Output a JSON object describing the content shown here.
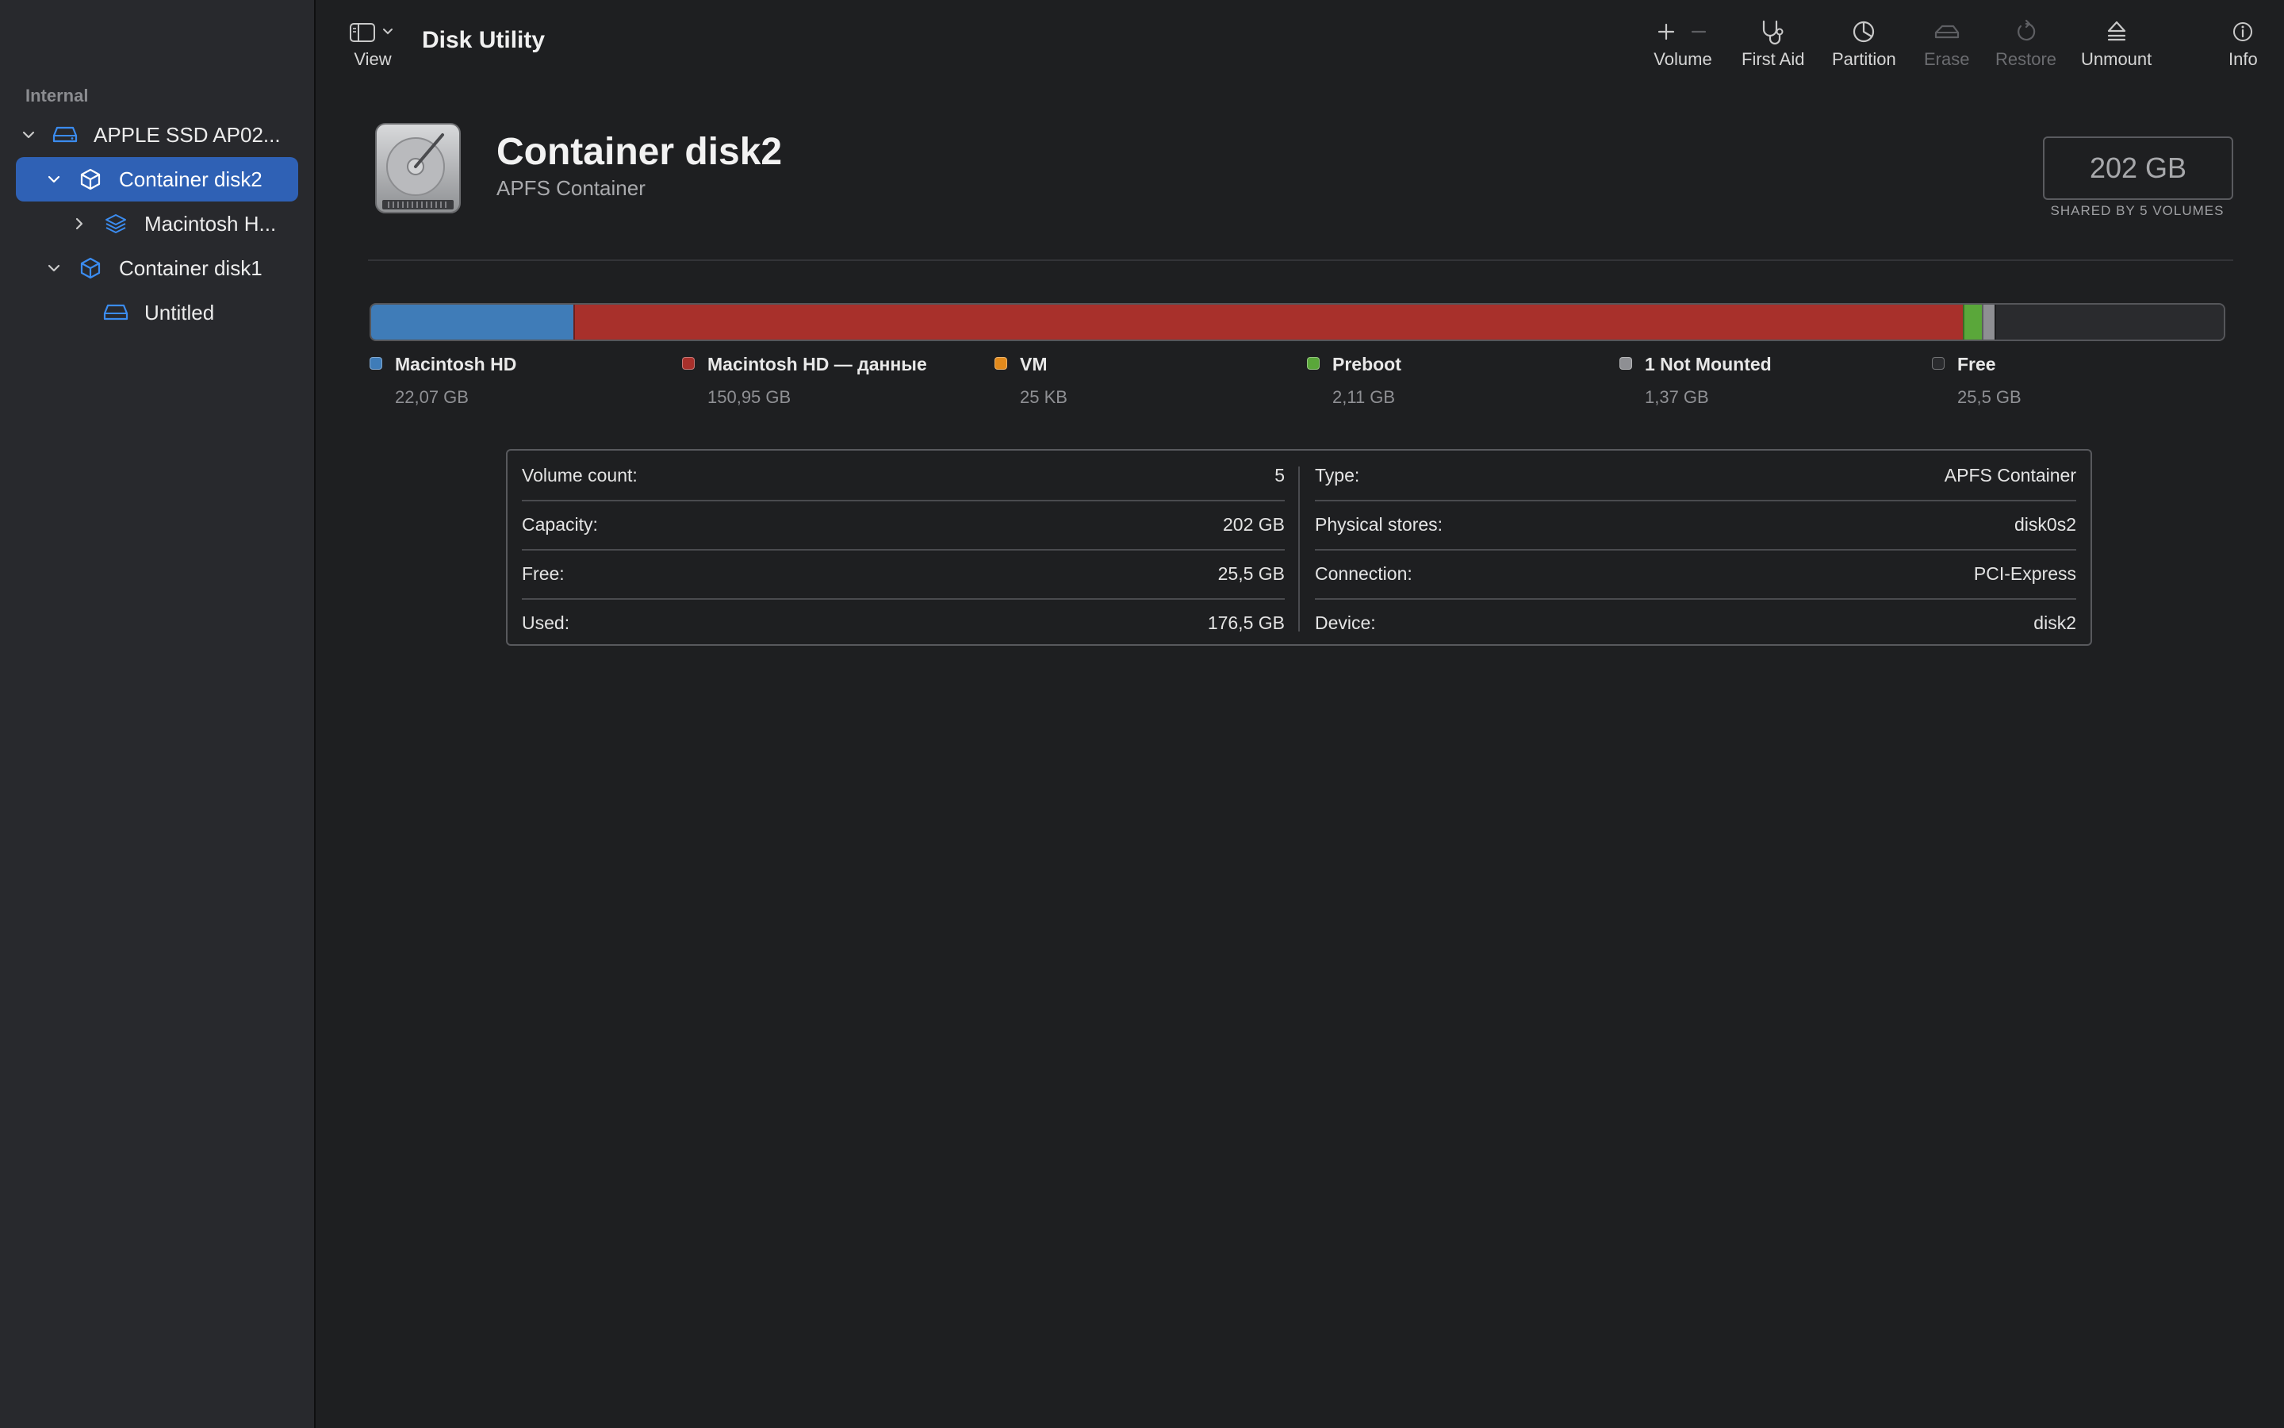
{
  "app": {
    "title": "Disk Utility"
  },
  "sidebar": {
    "section": "Internal",
    "items": [
      {
        "label": "APPLE SSD AP02...",
        "icon": "internal-drive-icon",
        "expanded": true,
        "selected": false
      },
      {
        "label": "Container disk2",
        "icon": "container-cube-icon",
        "expanded": true,
        "selected": true
      },
      {
        "label": "Macintosh H...",
        "icon": "volume-stack-icon",
        "expanded": false,
        "selected": false
      },
      {
        "label": "Container disk1",
        "icon": "container-cube-icon",
        "expanded": true,
        "selected": false
      },
      {
        "label": "Untitled",
        "icon": "volume-drive-icon",
        "expanded": null,
        "selected": false
      }
    ]
  },
  "toolbar": {
    "view_label": "View",
    "volume_label": "Volume",
    "first_aid_label": "First Aid",
    "partition_label": "Partition",
    "erase_label": "Erase",
    "restore_label": "Restore",
    "unmount_label": "Unmount",
    "info_label": "Info"
  },
  "main": {
    "title": "Container disk2",
    "subtitle": "APFS Container",
    "capacity": "202 GB",
    "capacity_caption": "SHARED BY 5 VOLUMES"
  },
  "usage": {
    "segments": [
      {
        "name": "Macintosh HD",
        "size": "22,07 GB",
        "color": "#3f7cb8",
        "fraction": 0.1093
      },
      {
        "name": "Macintosh HD — данные",
        "size": "150,95 GB",
        "color": "#a8302b",
        "fraction": 0.7497
      },
      {
        "name": "VM",
        "size": "25 KB",
        "color": "#e28a1c",
        "fraction": 0.0
      },
      {
        "name": "Preboot",
        "size": "2,11 GB",
        "color": "#5aa73a",
        "fraction": 0.0105
      },
      {
        "name": "1 Not Mounted",
        "size": "1,37 GB",
        "color": "#8e8f93",
        "fraction": 0.0068
      },
      {
        "name": "Free",
        "size": "25,5 GB",
        "color": "#2a2b2e",
        "fraction": 0.1237
      }
    ]
  },
  "info": {
    "left": [
      {
        "label": "Volume count:",
        "value": "5"
      },
      {
        "label": "Capacity:",
        "value": "202 GB"
      },
      {
        "label": "Free:",
        "value": "25,5 GB"
      },
      {
        "label": "Used:",
        "value": "176,5 GB"
      }
    ],
    "right": [
      {
        "label": "Type:",
        "value": "APFS Container"
      },
      {
        "label": "Physical stores:",
        "value": "disk0s2"
      },
      {
        "label": "Connection:",
        "value": "PCI-Express"
      },
      {
        "label": "Device:",
        "value": "disk2"
      }
    ]
  }
}
